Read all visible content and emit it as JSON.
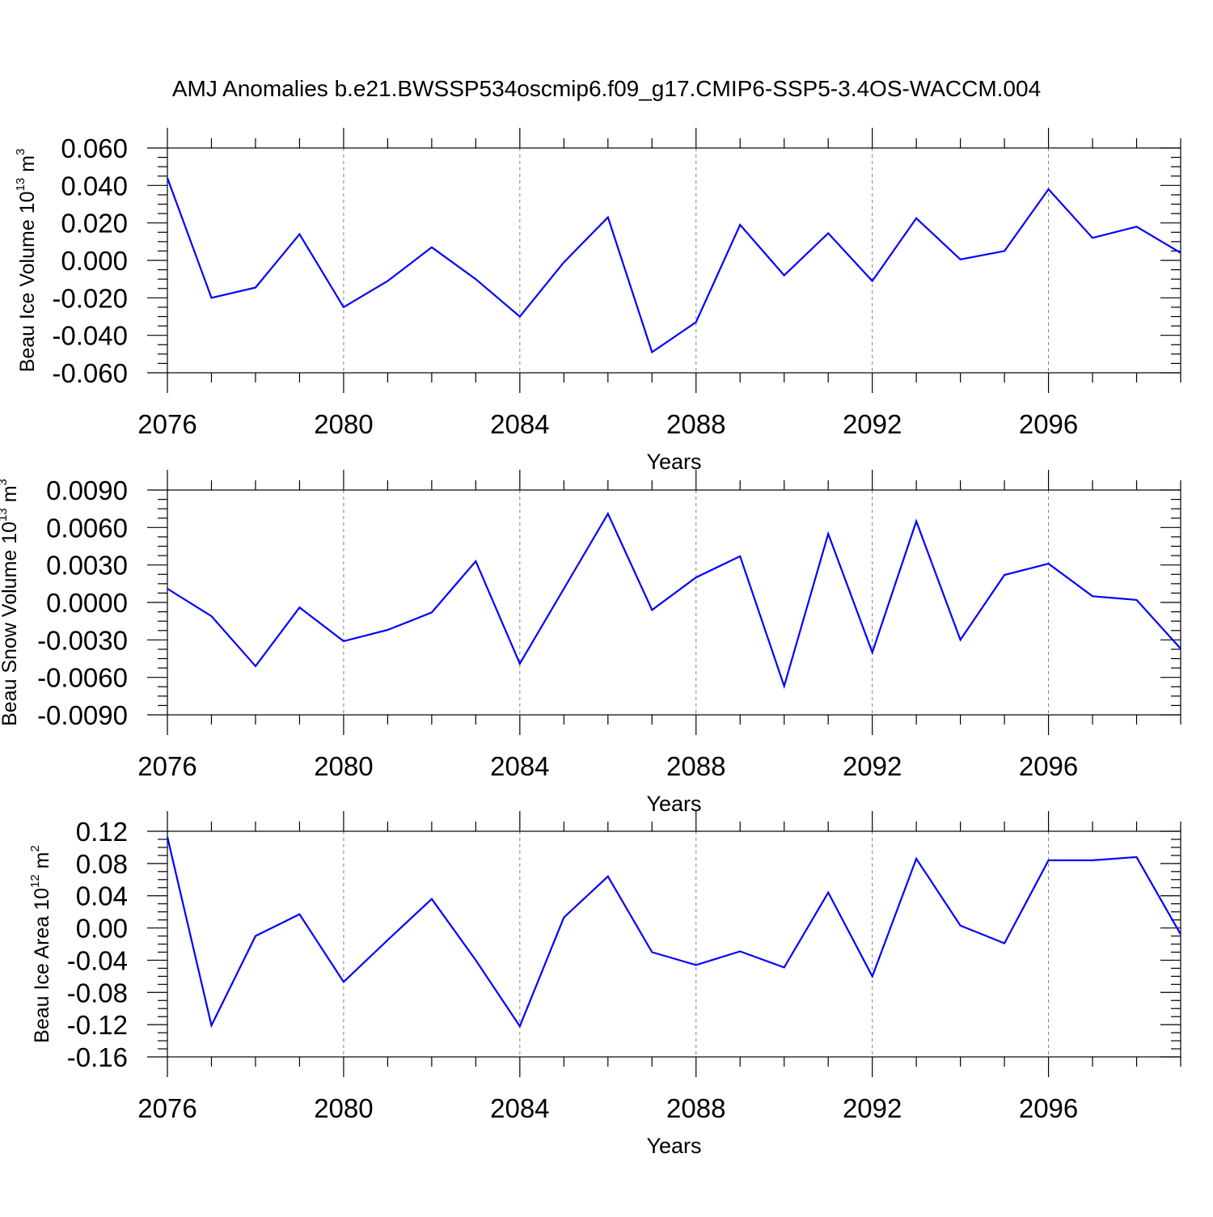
{
  "title": "AMJ Anomalies b.e21.BWSSP534oscmip6.f09_g17.CMIP6-SSP5-3.4OS-WACCM.004",
  "colors": {
    "line": "#0000ff",
    "axis": "#000000",
    "grid": "#808080",
    "background": "#ffffff"
  },
  "chart_data": [
    {
      "type": "line",
      "ylabel": {
        "text": "Beau Ice Volume 10",
        "exponent": "13",
        "unit": " m",
        "unit_exponent": "3"
      },
      "xlabel": "Years",
      "xlim": [
        2076,
        2099
      ],
      "ylim": [
        -0.06,
        0.06
      ],
      "xticks": [
        "2076",
        "2080",
        "2084",
        "2088",
        "2092",
        "2096"
      ],
      "yticks": [
        "0.060",
        "0.040",
        "0.020",
        "0.000",
        "-0.020",
        "-0.040",
        "-0.060"
      ],
      "ytick_values": [
        0.06,
        0.04,
        0.02,
        0.0,
        -0.02,
        -0.04,
        -0.06
      ],
      "x": [
        2076,
        2077,
        2078,
        2079,
        2080,
        2081,
        2082,
        2083,
        2084,
        2085,
        2086,
        2087,
        2088,
        2089,
        2090,
        2091,
        2092,
        2093,
        2094,
        2095,
        2096,
        2097,
        2098,
        2099
      ],
      "series": [
        {
          "name": "Beau Ice Volume",
          "values": [
            0.044,
            -0.02,
            -0.0145,
            0.014,
            -0.025,
            -0.011,
            0.007,
            -0.01,
            -0.03,
            -0.001,
            0.023,
            -0.049,
            -0.033,
            0.019,
            -0.008,
            0.0145,
            -0.011,
            0.0225,
            0.0005,
            0.005,
            0.038,
            0.012,
            0.018,
            0.004
          ]
        }
      ]
    },
    {
      "type": "line",
      "ylabel": {
        "text": "Beau Snow Volume 10",
        "exponent": "13",
        "unit": " m",
        "unit_exponent": "3"
      },
      "xlabel": "Years",
      "xlim": [
        2076,
        2099
      ],
      "ylim": [
        -0.009,
        0.009
      ],
      "xticks": [
        "2076",
        "2080",
        "2084",
        "2088",
        "2092",
        "2096"
      ],
      "yticks": [
        "0.0090",
        "0.0060",
        "0.0030",
        "0.0000",
        "-0.0030",
        "-0.0060",
        "-0.0090"
      ],
      "ytick_values": [
        0.009,
        0.006,
        0.003,
        0.0,
        -0.003,
        -0.006,
        -0.009
      ],
      "x": [
        2076,
        2077,
        2078,
        2079,
        2080,
        2081,
        2082,
        2083,
        2084,
        2085,
        2086,
        2087,
        2088,
        2089,
        2090,
        2091,
        2092,
        2093,
        2094,
        2095,
        2096,
        2097,
        2098,
        2099
      ],
      "series": [
        {
          "name": "Beau Snow Volume",
          "values": [
            0.0011,
            -0.0011,
            -0.0051,
            -0.0004,
            -0.0031,
            -0.0022,
            -0.0008,
            0.0033,
            -0.0049,
            0.0011,
            0.0071,
            -0.0006,
            0.002,
            0.0037,
            -0.0067,
            0.0055,
            -0.004,
            0.0065,
            -0.003,
            0.0022,
            0.0031,
            0.0005,
            0.0002,
            -0.0037
          ]
        }
      ]
    },
    {
      "type": "line",
      "ylabel": {
        "text": "Beau Ice Area 10",
        "exponent": "12",
        "unit": " m",
        "unit_exponent": "2"
      },
      "xlabel": "Years",
      "xlim": [
        2076,
        2099
      ],
      "ylim": [
        -0.16,
        0.12
      ],
      "xticks": [
        "2076",
        "2080",
        "2084",
        "2088",
        "2092",
        "2096"
      ],
      "yticks": [
        "0.12",
        "0.08",
        "0.04",
        "0.00",
        "-0.04",
        "-0.08",
        "-0.12",
        "-0.16"
      ],
      "ytick_values": [
        0.12,
        0.08,
        0.04,
        0.0,
        -0.04,
        -0.08,
        -0.12,
        -0.16
      ],
      "x": [
        2076,
        2077,
        2078,
        2079,
        2080,
        2081,
        2082,
        2083,
        2084,
        2085,
        2086,
        2087,
        2088,
        2089,
        2090,
        2091,
        2092,
        2093,
        2094,
        2095,
        2096,
        2097,
        2098,
        2099
      ],
      "series": [
        {
          "name": "Beau Ice Area",
          "values": [
            0.113,
            -0.121,
            -0.01,
            0.017,
            -0.067,
            -0.015,
            0.036,
            -0.04,
            -0.122,
            0.013,
            0.064,
            -0.03,
            -0.046,
            -0.029,
            -0.049,
            0.044,
            -0.06,
            0.086,
            0.003,
            -0.019,
            0.084,
            0.084,
            0.088,
            -0.008
          ]
        }
      ]
    }
  ]
}
